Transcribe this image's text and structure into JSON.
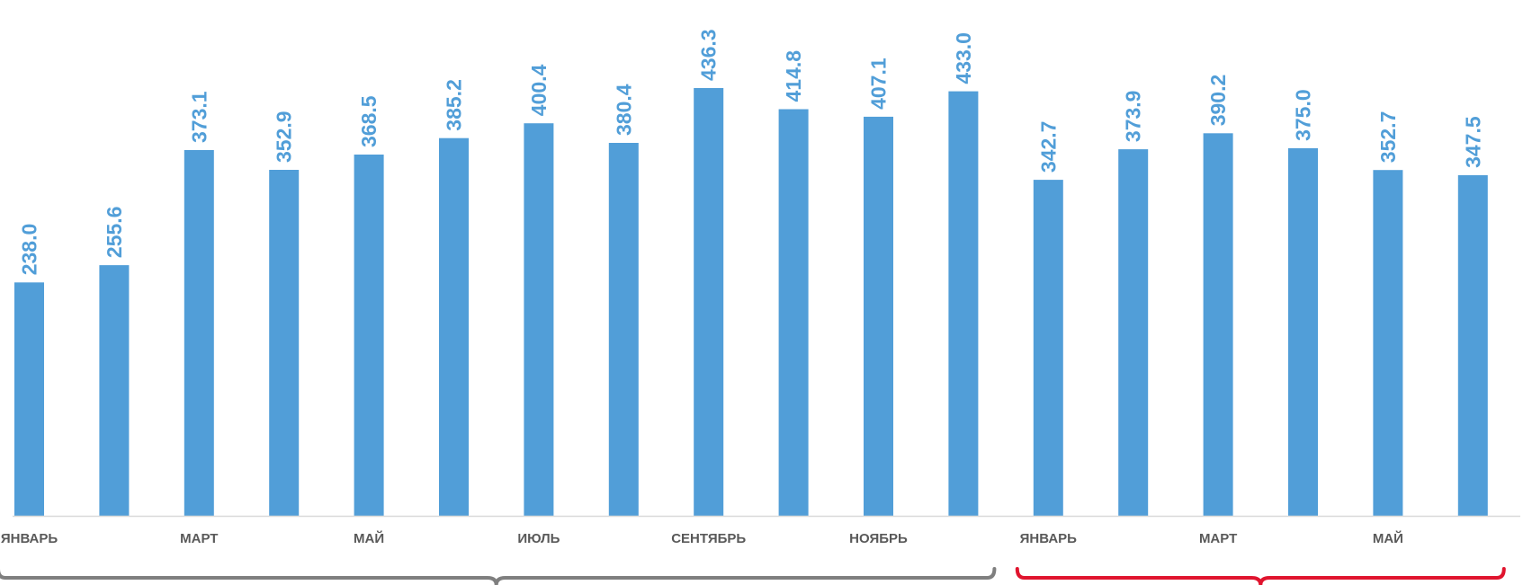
{
  "colors": {
    "bar": "#519ed8",
    "label": "#519ed8",
    "axis": "#d9d9d9",
    "tick_text": "#595959",
    "group1_bracket": "#7f7f7f",
    "group2_bracket": "#e0142e"
  },
  "chart_data": {
    "type": "bar",
    "title": "",
    "xlabel": "",
    "ylabel": "",
    "ylim": [
      0,
      480
    ],
    "grid": false,
    "legend": "none",
    "categories": [
      "ЯНВАРЬ",
      "",
      "МАРТ",
      "",
      "МАЙ",
      "",
      "ИЮЛЬ",
      "",
      "СЕНТЯБРЬ",
      "",
      "НОЯБРЬ",
      "",
      "ЯНВАРЬ",
      "",
      "МАРТ",
      "",
      "МАЙ",
      ""
    ],
    "values": [
      238.0,
      255.6,
      373.1,
      352.9,
      368.5,
      385.2,
      400.4,
      380.4,
      436.3,
      414.8,
      407.1,
      433.0,
      342.7,
      373.9,
      390.2,
      375.0,
      352.7,
      347.5
    ],
    "data_labels": [
      "238.0",
      "255.6",
      "373.1",
      "352.9",
      "368.5",
      "385.2",
      "400.4",
      "380.4",
      "436.3",
      "414.8",
      "407.1",
      "433.0",
      "342.7",
      "373.9",
      "390.2",
      "375.0",
      "352.7",
      "347.5"
    ],
    "groups": [
      {
        "first_index": 0,
        "last_index": 11
      },
      {
        "first_index": 12,
        "last_index": 17
      }
    ]
  }
}
